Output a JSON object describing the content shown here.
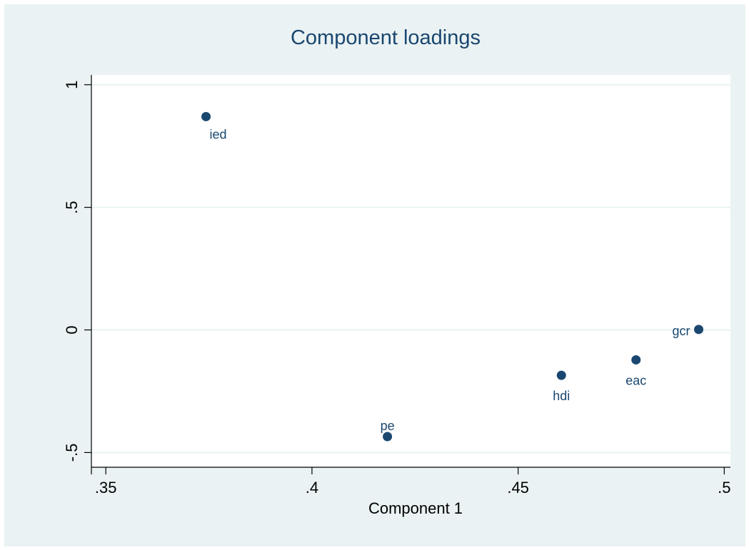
{
  "chart_data": {
    "type": "scatter",
    "title": "Component loadings",
    "xlabel": "Component 1",
    "ylabel": "",
    "xlim": [
      0.3465,
      0.5015
    ],
    "ylim": [
      -0.56,
      1.04
    ],
    "xticks": [
      {
        "value": 0.35,
        "label": ".35"
      },
      {
        "value": 0.4,
        "label": ".4"
      },
      {
        "value": 0.45,
        "label": ".45"
      },
      {
        "value": 0.5,
        "label": ".5"
      }
    ],
    "yticks": [
      {
        "value": -0.5,
        "label": "-.5"
      },
      {
        "value": 0,
        "label": "0"
      },
      {
        "value": 0.5,
        "label": ".5"
      },
      {
        "value": 1,
        "label": "1"
      }
    ],
    "grid": true,
    "points": [
      {
        "label": "ied",
        "x": 0.3743,
        "y": 0.87,
        "label_position": "below-right"
      },
      {
        "label": "pe",
        "x": 0.4183,
        "y": -0.435,
        "label_position": "above"
      },
      {
        "label": "hdi",
        "x": 0.4605,
        "y": -0.185,
        "label_position": "below"
      },
      {
        "label": "eac",
        "x": 0.4786,
        "y": -0.122,
        "label_position": "below"
      },
      {
        "label": "gcr",
        "x": 0.4938,
        "y": 0.002,
        "label_position": "left"
      }
    ],
    "colors": {
      "marker": "#1a476f",
      "title": "#1a476f",
      "grid": "#eaf2f3",
      "plot_background": "#ffffff",
      "outer_background": "#eaf2f3"
    }
  }
}
